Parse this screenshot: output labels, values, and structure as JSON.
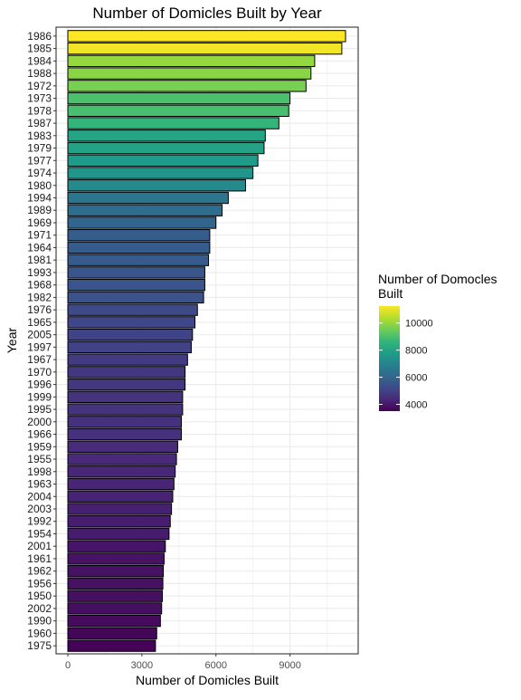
{
  "chart_data": {
    "type": "bar",
    "orientation": "horizontal",
    "title": "Number of Domicles Built by Year",
    "xlabel": "Number of Domicles Built",
    "ylabel": "Year",
    "xlim": [
      0,
      11800
    ],
    "x_ticks": [
      0,
      3000,
      6000,
      9000
    ],
    "grid": true,
    "legend": {
      "title": "Number of Domocles Built",
      "placement": "right",
      "type": "colorbar",
      "ticks": [
        4000,
        6000,
        8000,
        10000
      ],
      "range": [
        3500,
        11250
      ]
    },
    "colors": {
      "scale": [
        "#440154",
        "#482878",
        "#3e4a89",
        "#31688e",
        "#26828e",
        "#1f9e89",
        "#35b779",
        "#6ece58",
        "#b5de2b",
        "#fde725"
      ],
      "bar_outline": "#000000",
      "grid": "#ebebeb",
      "panel_border": "#333333"
    },
    "categories": [
      "1986",
      "1985",
      "1984",
      "1988",
      "1972",
      "1973",
      "1978",
      "1987",
      "1983",
      "1979",
      "1977",
      "1974",
      "1980",
      "1994",
      "1989",
      "1969",
      "1971",
      "1964",
      "1981",
      "1993",
      "1968",
      "1982",
      "1976",
      "1965",
      "2005",
      "1997",
      "1967",
      "1970",
      "1996",
      "1999",
      "1995",
      "2000",
      "1966",
      "1959",
      "1955",
      "1998",
      "1963",
      "2004",
      "2003",
      "1992",
      "1954",
      "2001",
      "1961",
      "1962",
      "1956",
      "1950",
      "2002",
      "1990",
      "1960",
      "1975"
    ],
    "values": [
      11250,
      11100,
      10000,
      9850,
      9650,
      9000,
      8950,
      8550,
      8000,
      7950,
      7700,
      7500,
      7200,
      6500,
      6250,
      6000,
      5750,
      5750,
      5700,
      5550,
      5550,
      5500,
      5250,
      5150,
      5050,
      5000,
      4850,
      4750,
      4750,
      4650,
      4650,
      4600,
      4600,
      4450,
      4400,
      4350,
      4300,
      4250,
      4200,
      4150,
      4100,
      3950,
      3900,
      3870,
      3850,
      3830,
      3800,
      3750,
      3600,
      3550
    ]
  }
}
